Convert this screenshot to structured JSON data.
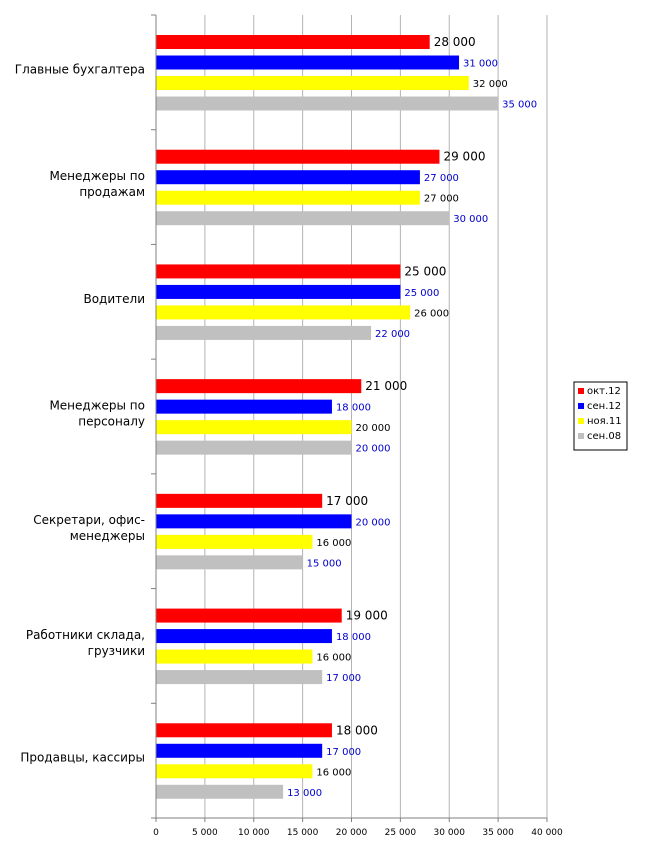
{
  "chart_data": {
    "type": "bar",
    "orientation": "horizontal",
    "title": "",
    "xlabel": "",
    "ylabel": "",
    "xlim": [
      0,
      40000
    ],
    "x_ticks": [
      0,
      5000,
      10000,
      15000,
      20000,
      25000,
      30000,
      35000,
      40000
    ],
    "x_tick_labels": [
      "0",
      "5 000",
      "10 000",
      "15 000",
      "20 000",
      "25 000",
      "30 000",
      "35 000",
      "40 000"
    ],
    "grid": "vertical",
    "legend_position": "right",
    "categories": [
      "Главные бухгалтера",
      "Менеджеры по продажам",
      "Водители",
      "Менеджеры по персоналу",
      "Секретари, офис-менеджеры",
      "Работники склада, грузчики",
      "Продавцы, кассиры"
    ],
    "category_label_lines": [
      [
        "Главные бухгалтера"
      ],
      [
        "Менеджеры по",
        "продажам"
      ],
      [
        "Водители"
      ],
      [
        "Менеджеры по",
        "персоналу"
      ],
      [
        "Секретари, офис-",
        "менеджеры"
      ],
      [
        "Работники склада,",
        "грузчики"
      ],
      [
        "Продавцы, кассиры"
      ]
    ],
    "series": [
      {
        "name": "окт.12",
        "color": "#ff0000",
        "label_color": "#000000",
        "values": [
          28000,
          29000,
          25000,
          21000,
          17000,
          19000,
          18000
        ],
        "labels": [
          "28 000",
          "29 000",
          "25 000",
          "21 000",
          "17 000",
          "19 000",
          "18 000"
        ]
      },
      {
        "name": "сен.12",
        "color": "#0000ff",
        "label_color": "#0000cc",
        "values": [
          31000,
          27000,
          25000,
          18000,
          20000,
          18000,
          17000
        ],
        "labels": [
          "31 000",
          "27 000",
          "25 000",
          "18 000",
          "20 000",
          "18 000",
          "17 000"
        ]
      },
      {
        "name": "ноя.11",
        "color": "#ffff00",
        "label_color": "#000000",
        "values": [
          32000,
          27000,
          26000,
          20000,
          16000,
          16000,
          16000
        ],
        "labels": [
          "32 000",
          "27 000",
          "26 000",
          "20 000",
          "16 000",
          "16 000",
          "16 000"
        ]
      },
      {
        "name": "сен.08",
        "color": "#c0c0c0",
        "label_color": "#0000cc",
        "values": [
          35000,
          30000,
          22000,
          20000,
          15000,
          17000,
          13000
        ],
        "labels": [
          "35 000",
          "30 000",
          "22 000",
          "20 000",
          "15 000",
          "17 000",
          "13 000"
        ]
      }
    ]
  }
}
